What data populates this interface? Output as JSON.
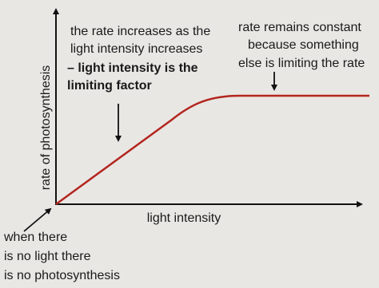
{
  "axes": {
    "x_label": "light intensity",
    "y_label": "rate of photosynthesis"
  },
  "annotations": [
    {
      "lines": [
        "the rate increases as the",
        "light intensity increases",
        "– light intensity is the",
        "limiting factor"
      ]
    },
    {
      "lines": [
        "rate remains constant",
        "because something",
        "else is limiting the rate"
      ]
    },
    {
      "lines": [
        "when there",
        "is no light there",
        "is no photosynthesis"
      ]
    }
  ]
}
